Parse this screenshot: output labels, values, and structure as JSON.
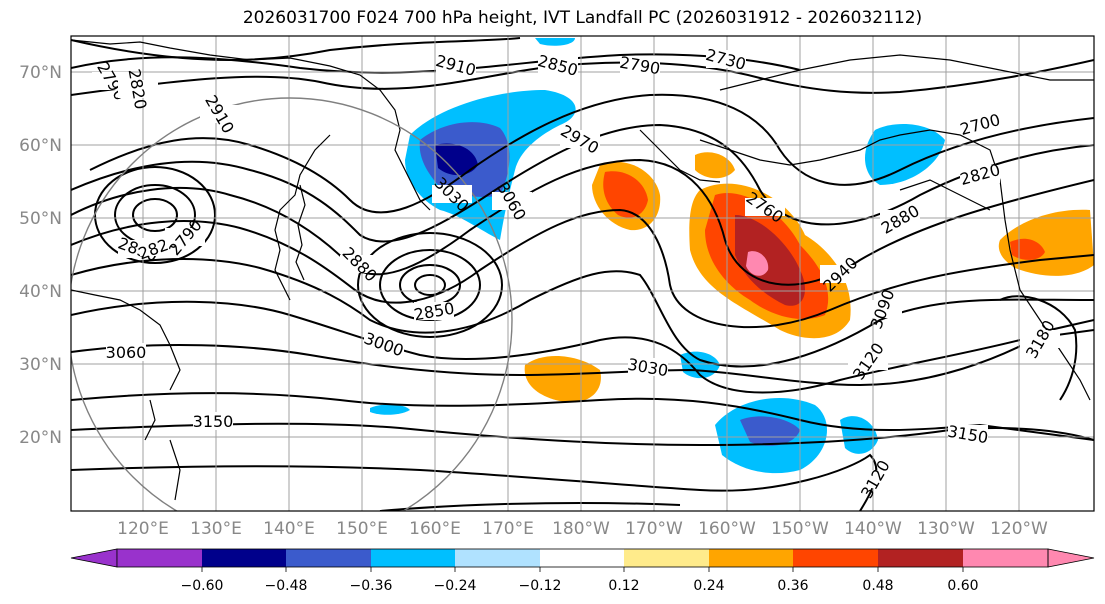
{
  "title": "2026031700 F024 700 hPa height, IVT Landfall PC (2026031912 - 2026032112)",
  "lat_labels": [
    "70°N",
    "60°N",
    "50°N",
    "40°N",
    "30°N",
    "20°N"
  ],
  "lon_labels": [
    "120°E",
    "130°E",
    "140°E",
    "150°E",
    "160°E",
    "170°E",
    "180°W",
    "170°W",
    "160°W",
    "150°W",
    "140°W",
    "130°W",
    "120°W"
  ],
  "contour_labels": [
    "2790",
    "2820",
    "2910",
    "2910",
    "2850",
    "2790",
    "2730",
    "2700",
    "2820",
    "2880",
    "2940",
    "3090",
    "3120",
    "3150",
    "3030",
    "3150",
    "3120",
    "2970",
    "3030",
    "3060",
    "2880",
    "2850",
    "3000",
    "3060",
    "3150",
    "2850",
    "2820",
    "2790",
    "2760",
    "3180"
  ],
  "colorbar": {
    "colors": [
      "#9932CC",
      "#00008B",
      "#3B5BCC",
      "#00BFFF",
      "#B0E2FF",
      "#FFFFFF",
      "#FFEB8B",
      "#FFA500",
      "#FF4500",
      "#B22222",
      "#FF88B0"
    ],
    "tick_labels": [
      "−0.60",
      "−0.48",
      "−0.36",
      "−0.24",
      "−0.12",
      "0.12",
      "0.24",
      "0.36",
      "0.48",
      "0.60"
    ]
  },
  "colors": {
    "pos_light": "#FFEB8B",
    "pos_orange": "#FFA500",
    "pos_red": "#FF4500",
    "pos_dark": "#B22222",
    "pos_pink": "#FF88B0",
    "neg_light": "#B0E2FF",
    "neg_cyan": "#00BFFF",
    "neg_blue": "#3B5BCC",
    "neg_navy": "#00008B"
  }
}
